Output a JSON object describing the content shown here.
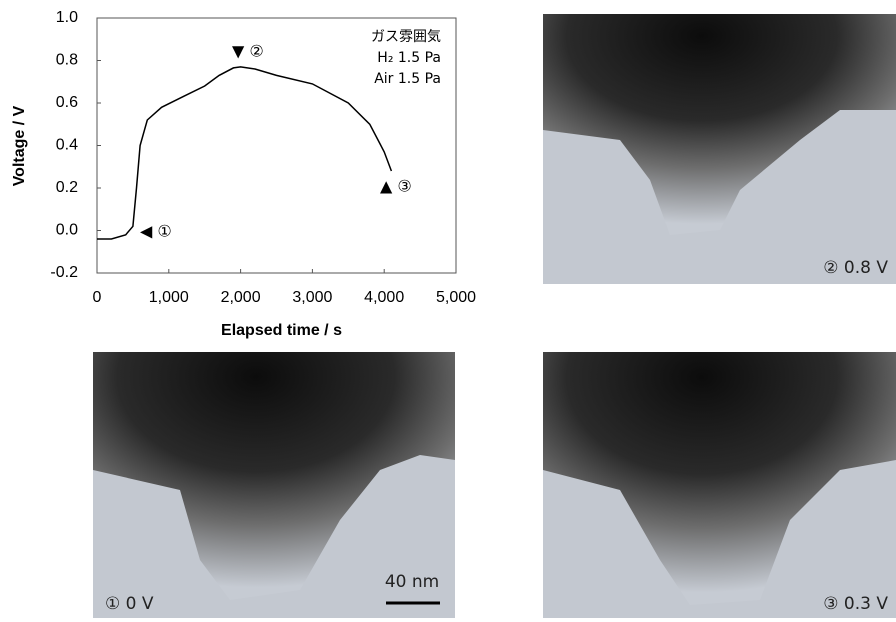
{
  "chart_data": {
    "type": "line",
    "x_label": "Elapsed time / s",
    "y_label": "Voltage / V",
    "x": [
      0,
      200,
      400,
      500,
      550,
      600,
      700,
      900,
      1200,
      1500,
      1700,
      1900,
      2000,
      2200,
      2500,
      3000,
      3500,
      3800,
      4000,
      4100
    ],
    "values": [
      -0.04,
      -0.04,
      -0.02,
      0.02,
      0.2,
      0.4,
      0.52,
      0.58,
      0.63,
      0.68,
      0.73,
      0.765,
      0.77,
      0.76,
      0.73,
      0.69,
      0.6,
      0.5,
      0.37,
      0.28
    ],
    "color": "#000000",
    "xlim": [
      0,
      5000
    ],
    "xticks": [
      0,
      {
        "value": 1000,
        "label": "1,000"
      },
      {
        "value": 2000,
        "label": "2,000"
      },
      {
        "value": 3000,
        "label": "3,000"
      },
      {
        "value": 4000,
        "label": "4,000"
      },
      {
        "value": 5000,
        "label": "5,000"
      }
    ],
    "ylim": [
      -0.2,
      1.0
    ],
    "yticks": [
      -0.2,
      {
        "value": 0,
        "label": "0.0"
      },
      0.2,
      0.4,
      0.6,
      0.8,
      {
        "value": 1.0,
        "label": "1.0"
      }
    ],
    "annotations": [
      "◀ ①",
      "▼ ②",
      "▲ ③"
    ],
    "legend_text": [
      "ガス雰囲気",
      "H₂ 1.5 Pa",
      "Air 1.5 Pa"
    ]
  },
  "panels": [
    {
      "caption": "① 0 V"
    },
    {
      "caption": "② 0.8 V"
    },
    {
      "caption": "③ 0.3 V"
    }
  ],
  "scale_bar": "40 nm"
}
